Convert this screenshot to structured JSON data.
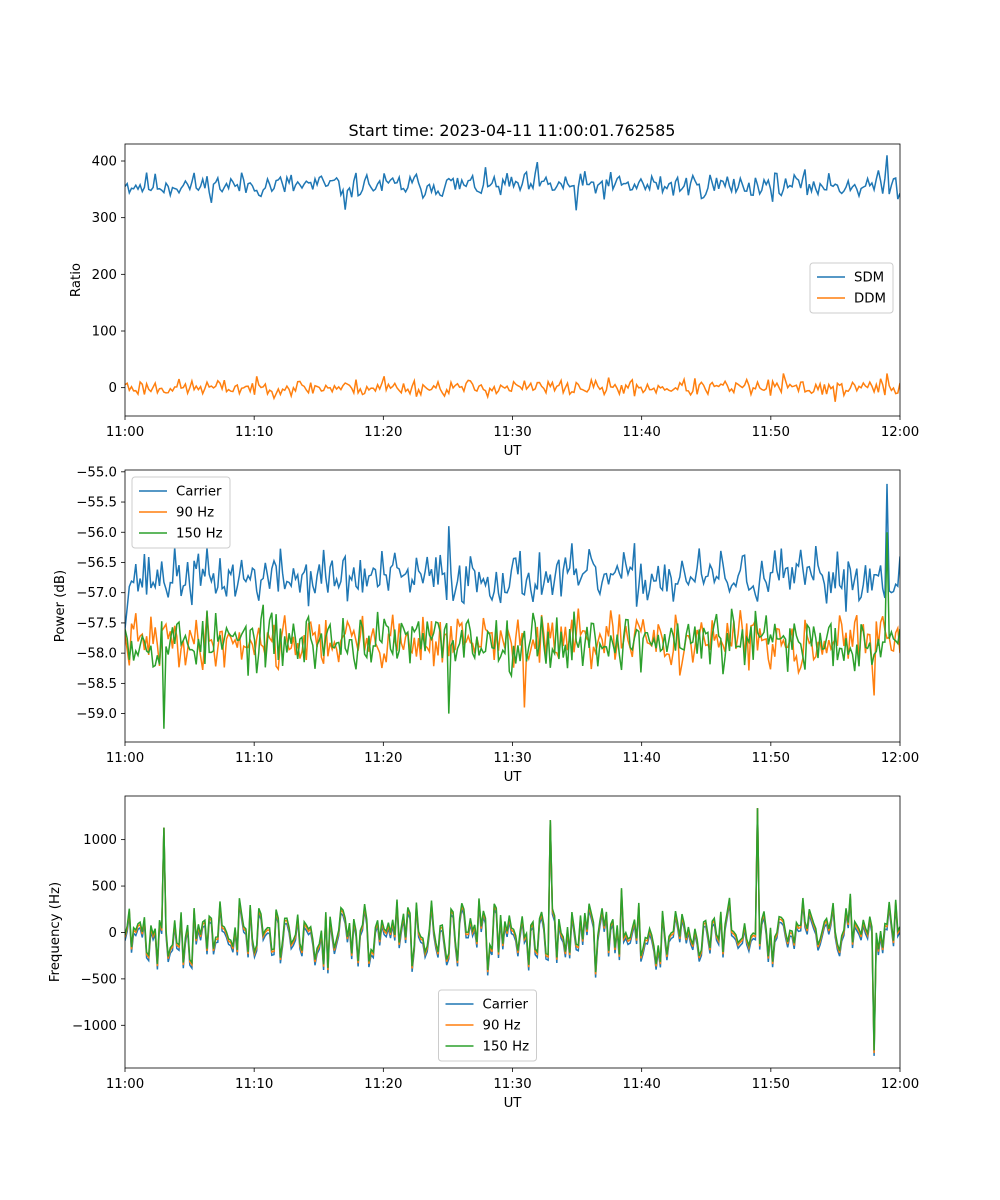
{
  "figure": {
    "title": "Start time: 2023-04-11 11:00:01.762585"
  },
  "chart_data": [
    {
      "type": "line",
      "ylabel": "Ratio",
      "xlabel": "UT",
      "xlim": [
        "11:00",
        "12:00"
      ],
      "ylim": [
        -50,
        430
      ],
      "x_ticks": [
        "11:00",
        "11:10",
        "11:20",
        "11:30",
        "11:40",
        "11:50",
        "12:00"
      ],
      "y_ticks": [
        0,
        100,
        200,
        300,
        400
      ],
      "legend_position": "center-right",
      "legend": [
        "SDM",
        "DDM"
      ],
      "series": [
        {
          "name": "SDM",
          "color": "#1f77b4",
          "mean": 357,
          "noise": 28,
          "n": 360,
          "seed": 11,
          "points": [
            [
              "11:00",
              355
            ],
            [
              "11:17",
              314
            ],
            [
              "11:32",
              398
            ],
            [
              "11:35",
              313
            ],
            [
              "11:59",
              410
            ],
            [
              "12:00",
              343
            ]
          ]
        },
        {
          "name": "DDM",
          "color": "#ff7f0e",
          "mean": 0,
          "noise": 18,
          "n": 360,
          "seed": 23,
          "points": [
            [
              "11:00",
              5
            ],
            [
              "11:20",
              20
            ],
            [
              "11:51",
              25
            ],
            [
              "11:55",
              -25
            ],
            [
              "11:59",
              25
            ],
            [
              "12:00",
              8
            ]
          ]
        }
      ]
    },
    {
      "type": "line",
      "ylabel": "Power (dB)",
      "xlabel": "UT",
      "xlim": [
        "11:00",
        "12:00"
      ],
      "ylim": [
        -59.47,
        -54.97
      ],
      "x_ticks": [
        "11:00",
        "11:10",
        "11:20",
        "11:30",
        "11:40",
        "11:50",
        "12:00"
      ],
      "y_ticks": [
        -59.0,
        -58.5,
        -58.0,
        -57.5,
        -57.0,
        -56.5,
        -56.0,
        -55.5,
        -55.0
      ],
      "legend_position": "upper-left",
      "legend": [
        "Carrier",
        "90 Hz",
        "150 Hz"
      ],
      "series": [
        {
          "name": "Carrier",
          "color": "#1f77b4",
          "mean": -56.75,
          "noise": 0.55,
          "n": 360,
          "seed": 37,
          "points": [
            [
              "11:00",
              -57.6
            ],
            [
              "11:25",
              -55.9
            ],
            [
              "11:59",
              -55.2
            ],
            [
              "12:00",
              -56.4
            ]
          ]
        },
        {
          "name": "90 Hz",
          "color": "#ff7f0e",
          "mean": -57.8,
          "noise": 0.55,
          "n": 360,
          "seed": 41,
          "points": [
            [
              "11:00",
              -57.7
            ],
            [
              "11:31",
              -58.9
            ],
            [
              "11:58",
              -58.7
            ],
            [
              "12:00",
              -58.0
            ]
          ]
        },
        {
          "name": "150 Hz",
          "color": "#2ca02c",
          "mean": -57.8,
          "noise": 0.6,
          "n": 360,
          "seed": 53,
          "points": [
            [
              "11:00",
              -57.6
            ],
            [
              "11:03",
              -59.25
            ],
            [
              "11:25",
              -59.0
            ],
            [
              "11:59",
              -56.0
            ],
            [
              "12:00",
              -57.6
            ]
          ]
        }
      ]
    },
    {
      "type": "line",
      "ylabel": "Frequency (Hz)",
      "xlabel": "UT",
      "xlim": [
        "11:00",
        "12:00"
      ],
      "ylim": [
        -1460,
        1470
      ],
      "x_ticks": [
        "11:00",
        "11:10",
        "11:20",
        "11:30",
        "11:40",
        "11:50",
        "12:00"
      ],
      "y_ticks": [
        -1000,
        -500,
        0,
        500,
        1000
      ],
      "legend_position": "lower-center",
      "legend": [
        "Carrier",
        "90 Hz",
        "150 Hz"
      ],
      "series": [
        {
          "name": "Carrier",
          "color": "#1f77b4",
          "offset": -60,
          "mean": 0,
          "noise": 420,
          "n": 360,
          "seed": 71,
          "points": [
            [
              "11:03",
              1130
            ],
            [
              "11:33",
              1210
            ],
            [
              "11:49",
              1340
            ],
            [
              "11:58",
              -1330
            ]
          ]
        },
        {
          "name": "90 Hz",
          "color": "#ff7f0e",
          "offset": -25,
          "mean": 0,
          "noise": 420,
          "n": 360,
          "seed": 71,
          "points": [
            [
              "11:03",
              1130
            ],
            [
              "11:33",
              1210
            ],
            [
              "11:49",
              1340
            ],
            [
              "11:58",
              -1300
            ]
          ]
        },
        {
          "name": "150 Hz",
          "color": "#2ca02c",
          "offset": 0,
          "mean": 0,
          "noise": 420,
          "n": 360,
          "seed": 71,
          "points": [
            [
              "11:03",
              1130
            ],
            [
              "11:33",
              1210
            ],
            [
              "11:49",
              1340
            ],
            [
              "11:58",
              -1270
            ]
          ]
        }
      ]
    }
  ]
}
